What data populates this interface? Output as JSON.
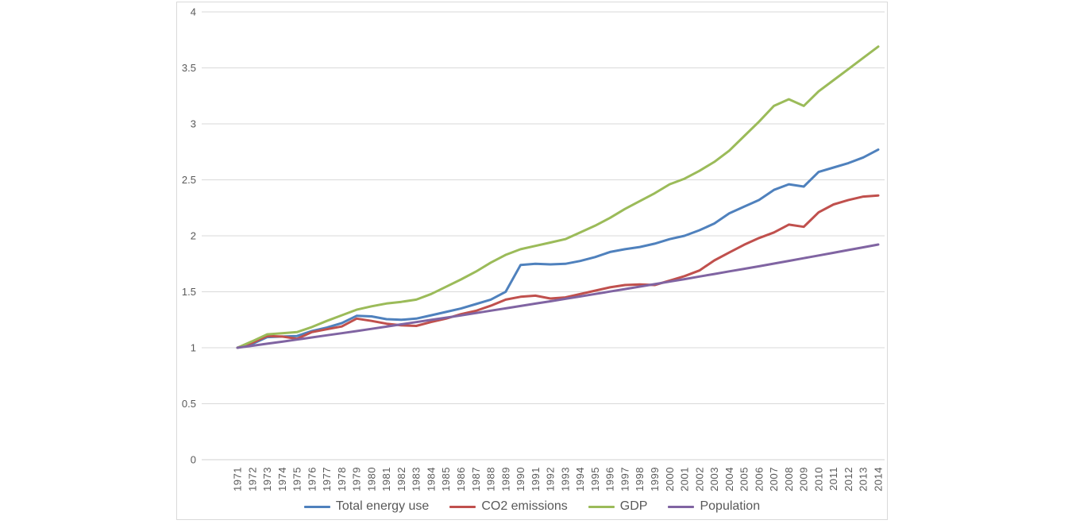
{
  "chart_data": {
    "type": "line",
    "title": "",
    "xlabel": "",
    "ylabel": "",
    "grid": true,
    "legend_position": "bottom",
    "ylim": [
      0,
      4
    ],
    "ytick_step": 0.5,
    "yticks": [
      "0",
      "0.5",
      "1",
      "1.5",
      "2",
      "2.5",
      "3",
      "3.5",
      "4"
    ],
    "x_years": [
      1971,
      1972,
      1973,
      1974,
      1975,
      1976,
      1977,
      1978,
      1979,
      1980,
      1981,
      1982,
      1983,
      1984,
      1985,
      1986,
      1987,
      1988,
      1989,
      1990,
      1991,
      1992,
      1993,
      1994,
      1995,
      1996,
      1997,
      1998,
      1999,
      2000,
      2001,
      2002,
      2003,
      2004,
      2005,
      2006,
      2007,
      2008,
      2009,
      2010,
      2011,
      2012,
      2013,
      2014
    ],
    "series": [
      {
        "name": "Total energy use",
        "color": "#4F81BD",
        "values": [
          1.0,
          1.035,
          1.095,
          1.1,
          1.105,
          1.15,
          1.18,
          1.22,
          1.285,
          1.28,
          1.255,
          1.25,
          1.26,
          1.29,
          1.32,
          1.35,
          1.39,
          1.43,
          1.5,
          1.74,
          1.75,
          1.745,
          1.75,
          1.775,
          1.81,
          1.855,
          1.88,
          1.9,
          1.93,
          1.97,
          2.0,
          2.05,
          2.11,
          2.2,
          2.26,
          2.32,
          2.41,
          2.46,
          2.44,
          2.57,
          2.61,
          2.65,
          2.7,
          2.77
        ]
      },
      {
        "name": "CO2 emissions",
        "color": "#C0504D",
        "values": [
          1.0,
          1.045,
          1.105,
          1.1,
          1.08,
          1.14,
          1.165,
          1.19,
          1.26,
          1.24,
          1.215,
          1.2,
          1.195,
          1.23,
          1.26,
          1.3,
          1.33,
          1.375,
          1.43,
          1.455,
          1.465,
          1.44,
          1.45,
          1.48,
          1.51,
          1.54,
          1.56,
          1.565,
          1.56,
          1.6,
          1.64,
          1.69,
          1.78,
          1.85,
          1.92,
          1.98,
          2.03,
          2.1,
          2.08,
          2.21,
          2.28,
          2.32,
          2.35,
          2.36
        ]
      },
      {
        "name": "GDP",
        "color": "#9BBB59",
        "values": [
          1.0,
          1.058,
          1.12,
          1.13,
          1.14,
          1.185,
          1.24,
          1.29,
          1.34,
          1.37,
          1.395,
          1.41,
          1.43,
          1.48,
          1.545,
          1.61,
          1.68,
          1.76,
          1.83,
          1.88,
          1.91,
          1.94,
          1.97,
          2.03,
          2.09,
          2.16,
          2.24,
          2.31,
          2.38,
          2.46,
          2.51,
          2.58,
          2.66,
          2.76,
          2.89,
          3.02,
          3.16,
          3.22,
          3.16,
          3.29,
          3.39,
          3.49,
          3.59,
          3.69
        ]
      },
      {
        "name": "Population",
        "color": "#8064A2",
        "values": [
          1.0,
          1.018,
          1.036,
          1.054,
          1.073,
          1.092,
          1.111,
          1.13,
          1.149,
          1.169,
          1.189,
          1.209,
          1.229,
          1.249,
          1.269,
          1.289,
          1.31,
          1.331,
          1.352,
          1.373,
          1.394,
          1.415,
          1.437,
          1.458,
          1.48,
          1.502,
          1.524,
          1.546,
          1.568,
          1.591,
          1.613,
          1.636,
          1.659,
          1.682,
          1.705,
          1.728,
          1.752,
          1.776,
          1.8,
          1.824,
          1.848,
          1.873,
          1.897,
          1.922
        ]
      }
    ],
    "styles": {
      "gridline_color": "#D9D9D9",
      "axis_line_color": "#D0D0D0",
      "axis_text_color": "#595959",
      "legend_text_color": "#595959",
      "frame_border_color": "#D9D9D9",
      "background_color": "#FFFFFF"
    }
  }
}
